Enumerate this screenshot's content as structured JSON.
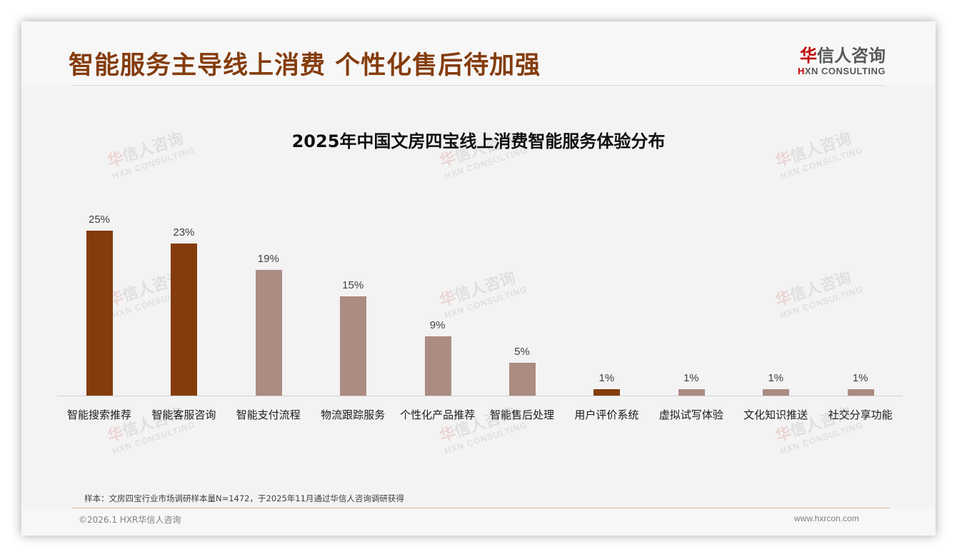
{
  "slide": {
    "headline": "智能服务主导线上消费 个性化售后待加强",
    "logo": {
      "cn_first": "华",
      "cn_rest": "信人咨询",
      "en_first": "H",
      "en_rest": "XN CONSULTING"
    },
    "watermark": {
      "cn_first": "华",
      "cn_rest": "信人咨询",
      "en": "HXN CONSULTING"
    },
    "note": "样本：文房四宝行业市场调研样本量N=1472，于2025年11月通过华信人咨询调研获得",
    "copyright": "©2026.1 HXR华信人咨询",
    "website": "www.hxrcon.com"
  },
  "colors": {
    "highlight": "#843c0c",
    "normal": "#ab8b82",
    "headline": "#843c0c"
  },
  "chart_data": {
    "type": "bar",
    "title": "2025年中国文房四宝线上消费智能服务体验分布",
    "xlabel": "",
    "ylabel": "",
    "ylim": [
      0,
      25
    ],
    "grid": false,
    "legend": "none",
    "categories": [
      "智能搜索推荐",
      "智能客服咨询",
      "智能支付流程",
      "物流跟踪服务",
      "个性化产品推荐",
      "智能售后处理",
      "用户评价系统",
      "虚拟试写体验",
      "文化知识推送",
      "社交分享功能"
    ],
    "values": [
      25,
      23,
      19,
      15,
      9,
      5,
      1,
      1,
      1,
      1
    ],
    "labels": [
      "25%",
      "23%",
      "19%",
      "15%",
      "9%",
      "5%",
      "1%",
      "1%",
      "1%",
      "1%"
    ],
    "highlighted": [
      true,
      true,
      false,
      false,
      false,
      false,
      true,
      false,
      false,
      false
    ]
  }
}
